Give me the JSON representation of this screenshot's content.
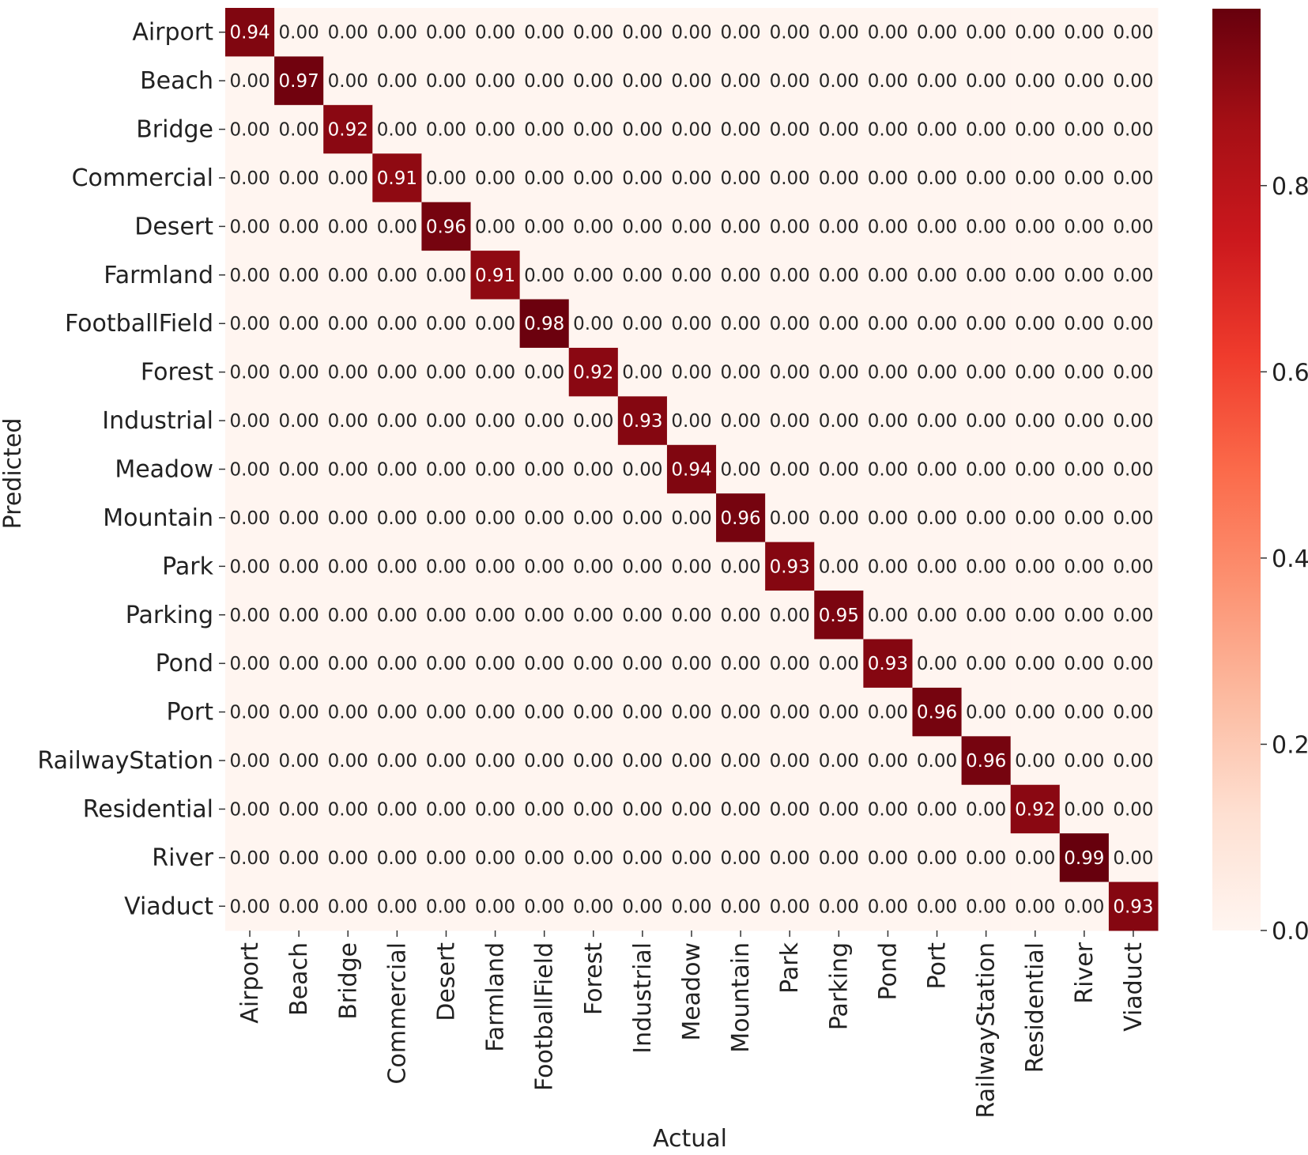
{
  "chart_data": {
    "type": "heatmap",
    "title": "",
    "xlabel": "Actual",
    "ylabel": "Predicted",
    "x_categories": [
      "Airport",
      "Beach",
      "Bridge",
      "Commercial",
      "Desert",
      "Farmland",
      "FootballField",
      "Forest",
      "Industrial",
      "Meadow",
      "Mountain",
      "Park",
      "Parking",
      "Pond",
      "Port",
      "RailwayStation",
      "Residential",
      "River",
      "Viaduct"
    ],
    "y_categories": [
      "Airport",
      "Beach",
      "Bridge",
      "Commercial",
      "Desert",
      "Farmland",
      "FootballField",
      "Forest",
      "Industrial",
      "Meadow",
      "Mountain",
      "Park",
      "Parking",
      "Pond",
      "Port",
      "RailwayStation",
      "Residential",
      "River",
      "Viaduct"
    ],
    "diagonal_values": [
      0.94,
      0.97,
      0.92,
      0.91,
      0.96,
      0.91,
      0.98,
      0.92,
      0.93,
      0.94,
      0.96,
      0.93,
      0.95,
      0.93,
      0.96,
      0.96,
      0.92,
      0.99,
      0.93
    ],
    "off_diagonal_value": 0.0,
    "value_format": "0.00",
    "colorbar": {
      "range": [
        0.0,
        0.99
      ],
      "ticks": [
        0.0,
        0.2,
        0.4,
        0.6,
        0.8
      ],
      "tick_labels": [
        "0.0",
        "0.2",
        "0.4",
        "0.6",
        "0.8"
      ],
      "colormap": "Reds"
    }
  }
}
